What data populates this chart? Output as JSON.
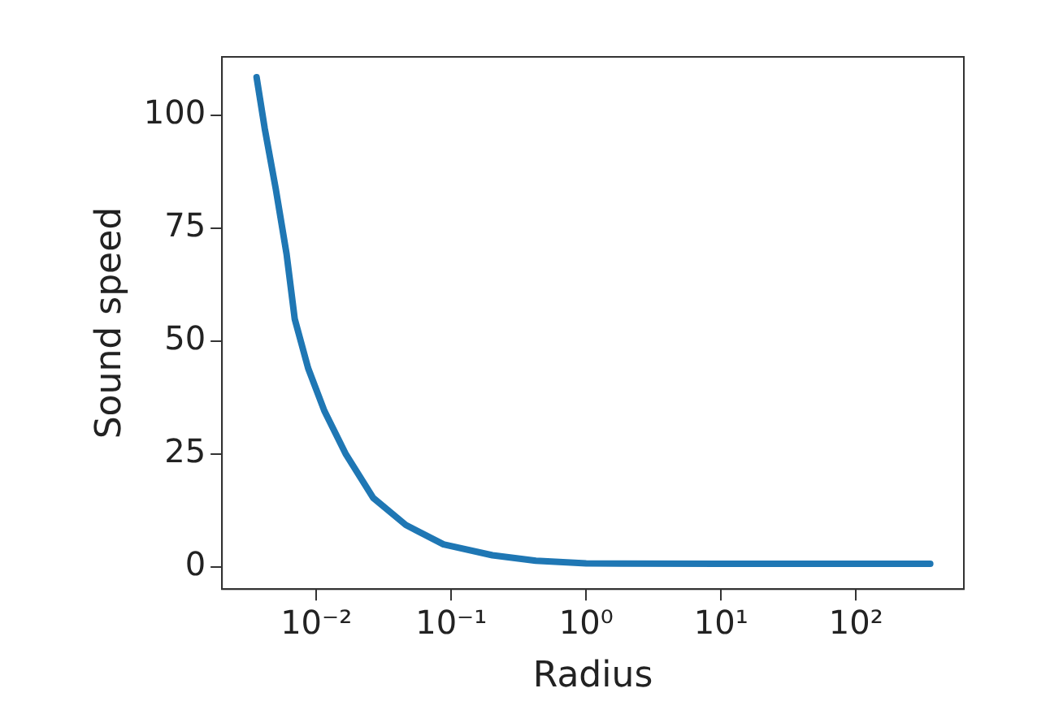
{
  "chart_data": {
    "type": "line",
    "xlabel": "Radius",
    "ylabel": "Sound speed",
    "log": "x",
    "x": [
      0.00361,
      0.00415,
      0.005,
      0.00602,
      0.00692,
      0.0087,
      0.0115,
      0.0166,
      0.0264,
      0.0461,
      0.0877,
      0.202,
      0.424,
      1,
      10,
      100,
      355
    ],
    "series": [
      {
        "color": "#1f77b4",
        "values": [
          108.4,
          97,
          83.8,
          69.3,
          54.9,
          44,
          34.5,
          24.9,
          15.3,
          9.3,
          5.0,
          2.6,
          1.4,
          0.8,
          0.7,
          0.7,
          0.7
        ]
      }
    ],
    "xlim": [
      0.002,
      630
    ],
    "ylim": [
      -4.9,
      112.9
    ],
    "xticks": [
      {
        "value": 0.01,
        "label": "10⁻²"
      },
      {
        "value": 0.1,
        "label": "10⁻¹"
      },
      {
        "value": 1,
        "label": "10⁰"
      },
      {
        "value": 10,
        "label": "10¹"
      },
      {
        "value": 100,
        "label": "10²"
      }
    ],
    "yticks": [
      0,
      25,
      50,
      75,
      100
    ],
    "grid": false,
    "legend": false,
    "marker": "none",
    "line_style": "solid"
  }
}
